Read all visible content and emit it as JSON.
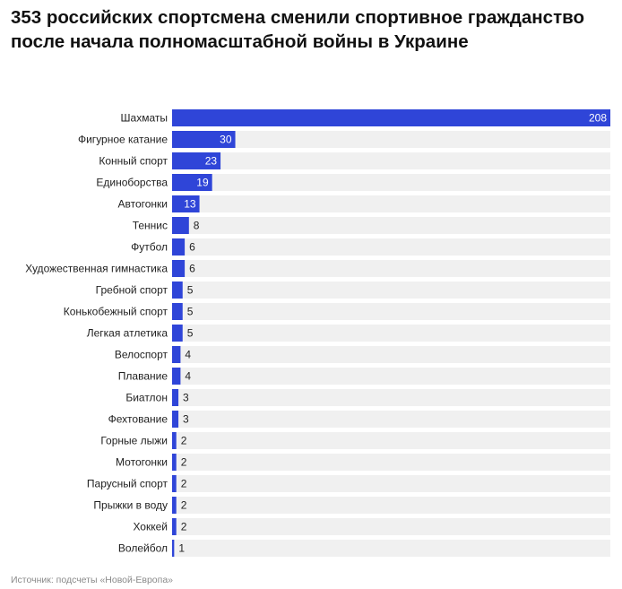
{
  "title": "353 российских спортсмена сменили спортивное гражданство после начала полномасштабной войны в Украине",
  "source": "Источник: подсчеты «Новой-Европа»",
  "colors": {
    "bar": "#2f45d8",
    "track": "#f0f0f0",
    "label_inside": "#ffffff",
    "label_outside": "#222222"
  },
  "chart_data": {
    "type": "bar",
    "orientation": "horizontal",
    "categories": [
      "Шахматы",
      "Фигурное катание",
      "Конный спорт",
      "Единоборства",
      "Автогонки",
      "Теннис",
      "Футбол",
      "Художественная гимнастика",
      "Гребной спорт",
      "Конькобежный спорт",
      "Легкая атлетика",
      "Велоспорт",
      "Плавание",
      "Биатлон",
      "Фехтование",
      "Горные лыжи",
      "Мотогонки",
      "Парусный спорт",
      "Прыжки в воду",
      "Хоккей",
      "Волейбол"
    ],
    "values": [
      208,
      30,
      23,
      19,
      13,
      8,
      6,
      6,
      5,
      5,
      5,
      4,
      4,
      3,
      3,
      2,
      2,
      2,
      2,
      2,
      1
    ],
    "xlim": [
      0,
      208
    ],
    "grid": false,
    "legend": "none"
  }
}
